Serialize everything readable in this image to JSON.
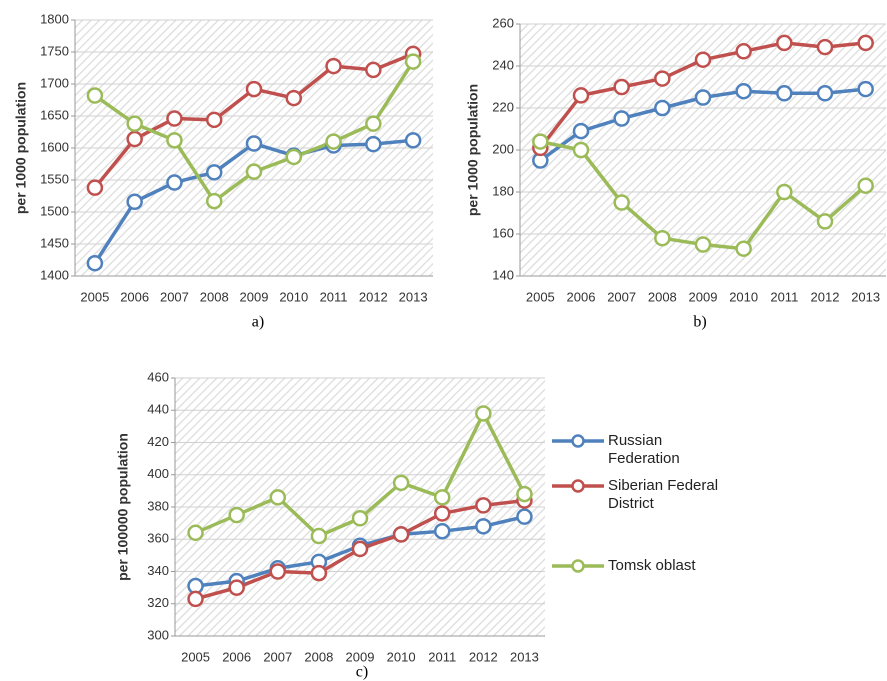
{
  "chart_data": [
    {
      "type": "line",
      "caption": "a)",
      "ylabel": "per 1000 population",
      "categories": [
        "2005",
        "2006",
        "2007",
        "2008",
        "2009",
        "2010",
        "2011",
        "2012",
        "2013"
      ],
      "ylim": [
        1400,
        1800
      ],
      "yticks": [
        1400,
        1450,
        1500,
        1550,
        1600,
        1650,
        1700,
        1750,
        1800
      ],
      "grid": true,
      "series": [
        {
          "name": "Russian Federation",
          "color": "#4f81bd",
          "values": [
            1420,
            1516,
            1546,
            1562,
            1607,
            1588,
            1604,
            1606,
            1612
          ]
        },
        {
          "name": "Siberian Federal District",
          "color": "#c0504d",
          "values": [
            1538,
            1614,
            1646,
            1644,
            1692,
            1678,
            1728,
            1722,
            1747
          ]
        },
        {
          "name": "Tomsk oblast",
          "color": "#9bbb59",
          "values": [
            1682,
            1638,
            1612,
            1517,
            1563,
            1586,
            1610,
            1638,
            1735
          ]
        }
      ]
    },
    {
      "type": "line",
      "caption": "b)",
      "ylabel": "per 1000 population",
      "categories": [
        "2005",
        "2006",
        "2007",
        "2008",
        "2009",
        "2010",
        "2011",
        "2012",
        "2013"
      ],
      "ylim": [
        140,
        260
      ],
      "yticks": [
        140,
        160,
        180,
        200,
        220,
        240,
        260
      ],
      "grid": true,
      "series": [
        {
          "name": "Russian Federation",
          "color": "#4f81bd",
          "values": [
            195,
            209,
            215,
            220,
            225,
            228,
            227,
            227,
            229
          ]
        },
        {
          "name": "Siberian Federal District",
          "color": "#c0504d",
          "values": [
            201,
            226,
            230,
            234,
            243,
            247,
            251,
            249,
            251
          ]
        },
        {
          "name": "Tomsk oblast",
          "color": "#9bbb59",
          "values": [
            204,
            200,
            175,
            158,
            155,
            153,
            180,
            166,
            183
          ]
        }
      ]
    },
    {
      "type": "line",
      "caption": "c)",
      "ylabel": "per 100000 population",
      "categories": [
        "2005",
        "2006",
        "2007",
        "2008",
        "2009",
        "2010",
        "2011",
        "2012",
        "2013"
      ],
      "ylim": [
        300,
        460
      ],
      "yticks": [
        300,
        320,
        340,
        360,
        380,
        400,
        420,
        440,
        460
      ],
      "grid": true,
      "series": [
        {
          "name": "Russian Federation",
          "color": "#4f81bd",
          "values": [
            331,
            334,
            342,
            346,
            356,
            363,
            365,
            368,
            374
          ]
        },
        {
          "name": "Siberian Federal District",
          "color": "#c0504d",
          "values": [
            323,
            330,
            340,
            339,
            354,
            363,
            376,
            381,
            384
          ]
        },
        {
          "name": "Tomsk oblast",
          "color": "#9bbb59",
          "values": [
            364,
            375,
            386,
            362,
            373,
            395,
            386,
            438,
            388
          ]
        }
      ]
    }
  ]
}
